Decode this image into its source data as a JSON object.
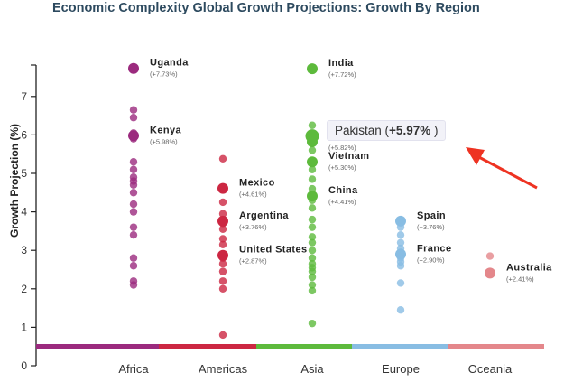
{
  "chart_data": {
    "type": "scatter",
    "title": "Economic Complexity Global Growth Projections: Growth By Region",
    "ylabel": "Growth Projection (%)",
    "ylim": [
      0,
      8
    ],
    "yticks": [
      0,
      1,
      2,
      3,
      4,
      5,
      6,
      7
    ],
    "categories": [
      "Africa",
      "Americas",
      "Asia",
      "Europe",
      "Oceania"
    ],
    "colors": {
      "Africa": "#9b2a7e",
      "Americas": "#cc2742",
      "Asia": "#5dba3c",
      "Europe": "#88bde3",
      "Oceania": "#e4878b"
    },
    "series": [
      {
        "region": "Africa",
        "values": [
          7.73,
          6.65,
          6.45,
          6.05,
          5.98,
          5.9,
          5.3,
          5.1,
          4.9,
          4.8,
          4.7,
          4.5,
          4.2,
          4.0,
          3.6,
          3.4,
          2.8,
          2.6,
          2.2,
          2.1
        ]
      },
      {
        "region": "Americas",
        "values": [
          5.38,
          4.61,
          4.25,
          3.95,
          3.76,
          3.7,
          3.55,
          3.3,
          3.15,
          2.87,
          2.8,
          2.65,
          2.45,
          2.2,
          2.0,
          0.8
        ]
      },
      {
        "region": "Asia",
        "values": [
          7.72,
          6.25,
          5.97,
          5.82,
          5.6,
          5.3,
          5.1,
          4.85,
          4.6,
          4.41,
          4.3,
          4.1,
          3.8,
          3.6,
          3.35,
          3.2,
          3.0,
          2.8,
          2.65,
          2.55,
          2.45,
          2.3,
          2.1,
          1.95,
          1.1
        ]
      },
      {
        "region": "Europe",
        "values": [
          3.76,
          3.6,
          3.4,
          3.2,
          3.05,
          2.95,
          2.9,
          2.8,
          2.7,
          2.6,
          2.15,
          1.45
        ]
      },
      {
        "region": "Oceania",
        "values": [
          2.85,
          2.41
        ]
      }
    ],
    "annotations": [
      {
        "region": "Africa",
        "name": "Uganda",
        "value": 7.73,
        "label": "(+7.73%)"
      },
      {
        "region": "Africa",
        "name": "Kenya",
        "value": 5.98,
        "label": "(+5.98%)"
      },
      {
        "region": "Americas",
        "name": "Mexico",
        "value": 4.61,
        "label": "(+4.61%)"
      },
      {
        "region": "Americas",
        "name": "Argentina",
        "value": 3.76,
        "label": "(+3.76%)"
      },
      {
        "region": "Americas",
        "name": "United States",
        "value": 2.87,
        "label": "(+2.87%)"
      },
      {
        "region": "Asia",
        "name": "India",
        "value": 7.72,
        "label": "(+7.72%)"
      },
      {
        "region": "Asia",
        "name": "",
        "value": 5.82,
        "label": "(+5.82%)"
      },
      {
        "region": "Asia",
        "name": "Vietnam",
        "value": 5.3,
        "label": "(+5.30%)"
      },
      {
        "region": "Asia",
        "name": "China",
        "value": 4.41,
        "label": "(+4.41%)"
      },
      {
        "region": "Europe",
        "name": "Spain",
        "value": 3.76,
        "label": "(+3.76%)"
      },
      {
        "region": "Europe",
        "name": "France",
        "value": 2.9,
        "label": "(+2.90%)"
      },
      {
        "region": "Oceania",
        "name": "Australia",
        "value": 2.41,
        "label": "(+2.41%)"
      }
    ],
    "tooltip": {
      "name": "Pakistan",
      "value": "(+5.97%)",
      "value_bold": "+5.97%",
      "region": "Asia"
    },
    "arrow_color": "#ee3322",
    "grid": false
  }
}
